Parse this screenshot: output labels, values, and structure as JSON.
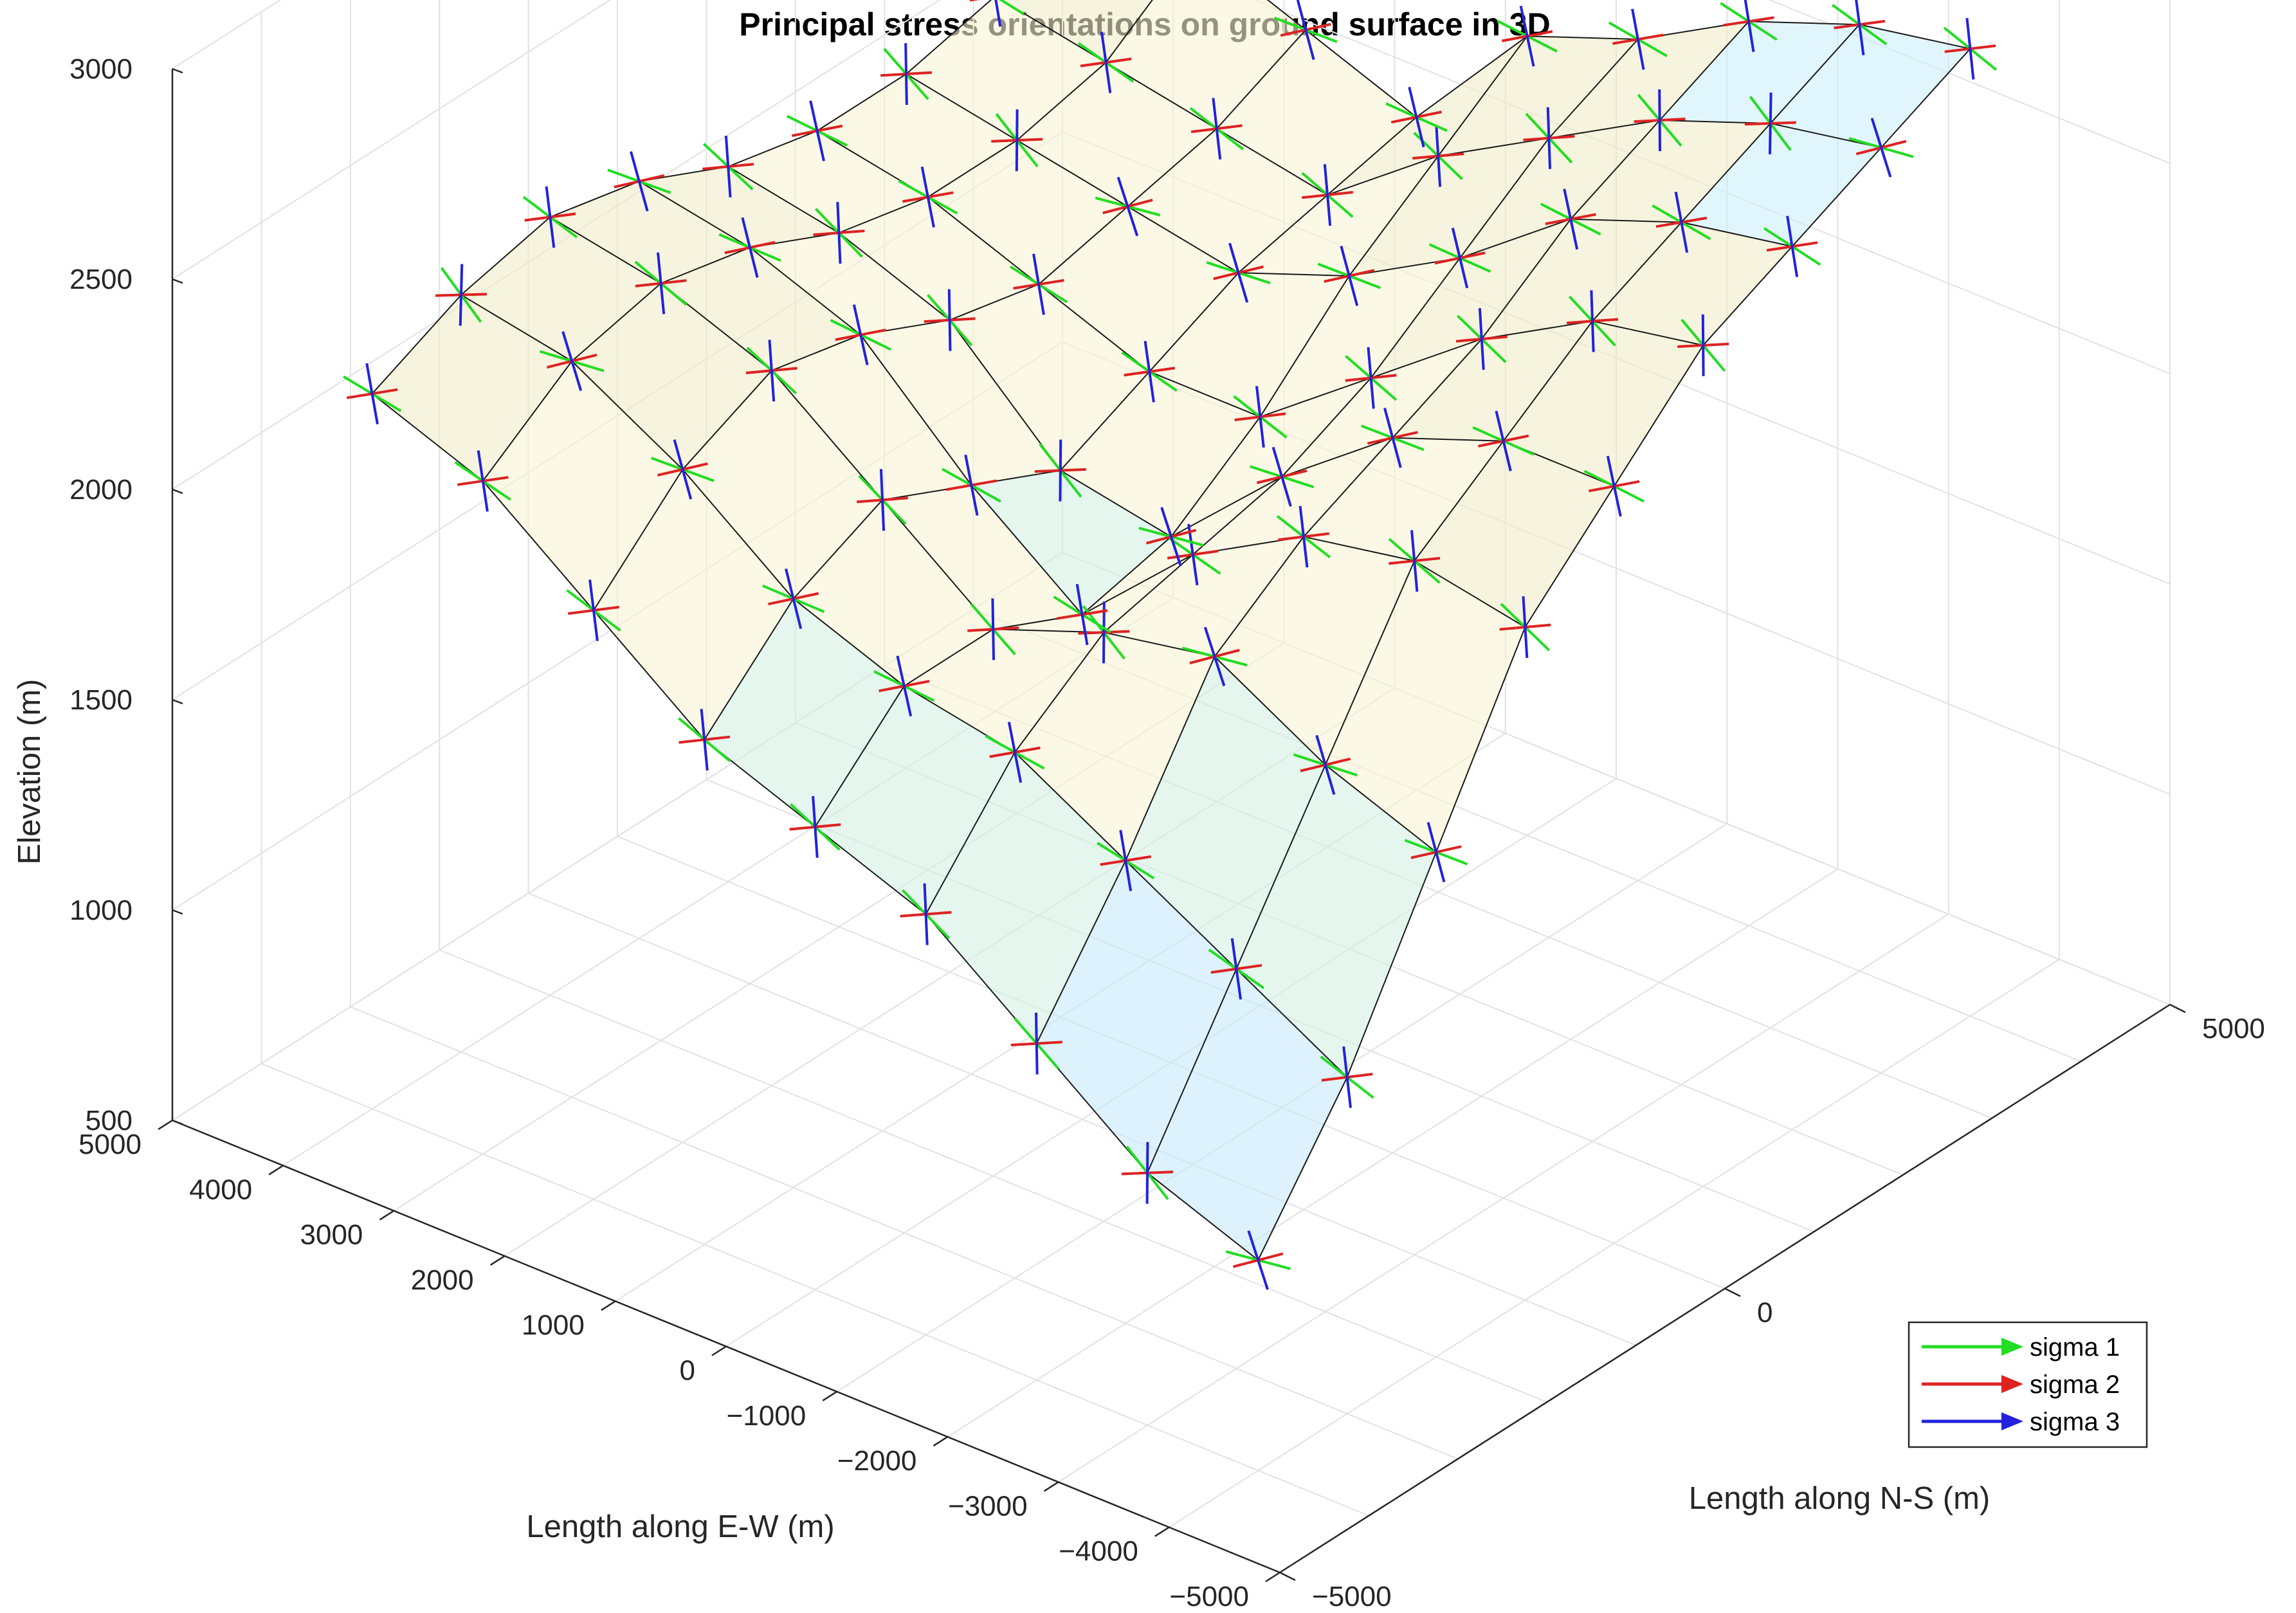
{
  "chart_data": {
    "type": "surface3d",
    "title": "Principal stress orientations on ground surface in 3D",
    "xlabel": "Length along E-W (m)",
    "ylabel": "Length along N-S (m)",
    "zlabel": "Elevation (m)",
    "x_ticks": [
      "5000",
      "4000",
      "3000",
      "2000",
      "1000",
      "0",
      "−1000",
      "−2000",
      "−3000",
      "−4000",
      "−5000"
    ],
    "y_ticks": [
      "−5000",
      "0",
      "5000"
    ],
    "z_ticks": [
      "500",
      "1000",
      "1500",
      "2000",
      "2500",
      "3000"
    ],
    "xlim": [
      -5000,
      5000
    ],
    "ylim": [
      -5000,
      5000
    ],
    "zlim": [
      500,
      3000
    ],
    "grid": true,
    "legend_position": "bottom-right",
    "legend": [
      {
        "name": "sigma 1",
        "color": "#22dd22"
      },
      {
        "name": "sigma 2",
        "color": "#dd2222"
      },
      {
        "name": "sigma 3",
        "color": "#2222dd"
      }
    ],
    "surface_grid": {
      "x": [
        -4000,
        -3000,
        -2000,
        -1000,
        0,
        1000,
        2000,
        3000,
        4000
      ],
      "y": [
        -4000,
        -3000,
        -2000,
        -1000,
        0,
        1000,
        2000,
        3000,
        4000
      ],
      "z": [
        [
          1000,
          1300,
          1700,
          2100,
          2300,
          2500,
          2600,
          2700,
          2800
        ],
        [
          1100,
          1450,
          1800,
          2150,
          2300,
          2450,
          2550,
          2650,
          2750
        ],
        [
          1300,
          1600,
          1950,
          2100,
          2200,
          2300,
          2450,
          2550,
          2650
        ],
        [
          1500,
          1750,
          1900,
          1950,
          2000,
          2100,
          2250,
          2400,
          2500
        ],
        [
          1600,
          1800,
          1800,
          1700,
          1750,
          1900,
          2100,
          2250,
          2400
        ],
        [
          1700,
          1900,
          2000,
          1900,
          1800,
          1900,
          2000,
          2050,
          2100
        ],
        [
          1900,
          2100,
          2200,
          2150,
          2050,
          2000,
          2050,
          2100,
          2200
        ],
        [
          2100,
          2250,
          2300,
          2250,
          2150,
          2100,
          2100,
          2150,
          2300
        ],
        [
          2200,
          2300,
          2350,
          2300,
          2200,
          2150,
          2150,
          2200,
          2400
        ]
      ]
    },
    "surface_colors": [
      "#c7e9fb",
      "#d4f0e4",
      "#f8f4d6",
      "#f0ecc8",
      "#cdeefc"
    ]
  }
}
